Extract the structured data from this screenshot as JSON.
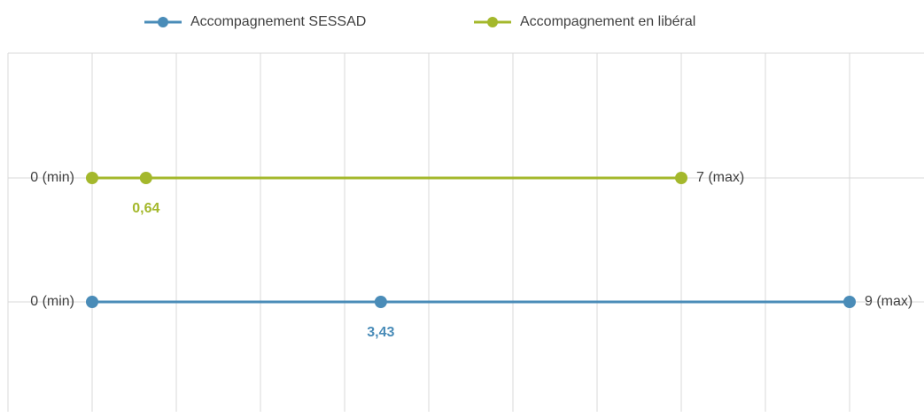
{
  "chart_data": {
    "type": "range",
    "series": [
      {
        "name": "Accompagnement SESSAD",
        "color": "#4a8cb8",
        "values": [
          0,
          3.43,
          9
        ],
        "value_labels": [
          "0 (min)",
          "3,43",
          "9 (max)"
        ]
      },
      {
        "name": "Accompagnement en libéral",
        "color": "#a4b82c",
        "values": [
          0,
          0.64,
          7
        ],
        "value_labels": [
          "0 (min)",
          "0,64",
          "7 (max)"
        ]
      }
    ],
    "xlim": [
      -1,
      10
    ],
    "xticks": [
      -1,
      0,
      1,
      2,
      3,
      4,
      5,
      6,
      7,
      8,
      9
    ],
    "grid": true,
    "legend": "top"
  }
}
